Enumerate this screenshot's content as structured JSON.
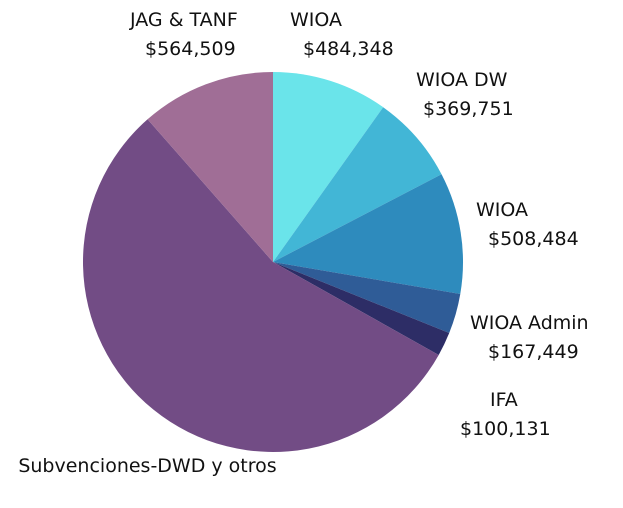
{
  "chart_data": {
    "type": "pie",
    "categories": [
      "WIOA",
      "WIOA DW",
      "WIOA",
      "WIOA Admin",
      "IFA",
      "Subvenciones-DWD y otros",
      "JAG & TANF"
    ],
    "values": [
      484348,
      369751,
      508484,
      167449,
      100131,
      2725000,
      564509
    ],
    "value_labels": [
      "$484,348",
      "$369,751",
      "$508,484",
      "$167,449",
      "$100,131",
      null,
      "$564,509"
    ],
    "colors": [
      "#6ae4ea",
      "#42b6d6",
      "#2e8bbd",
      "#2f5c97",
      "#2d2d66",
      "#724c85",
      "#a06e96"
    ]
  }
}
